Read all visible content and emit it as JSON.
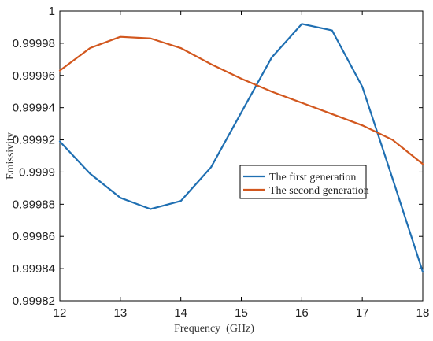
{
  "chart_data": {
    "type": "line",
    "title": "",
    "xlabel": "Frequency  (GHz)",
    "ylabel": "Emissivity",
    "xlim": [
      12,
      18
    ],
    "ylim": [
      0.99982,
      1.0
    ],
    "xticks": [
      12,
      13,
      14,
      15,
      16,
      17,
      18
    ],
    "xtick_labels": [
      "12",
      "13",
      "14",
      "15",
      "16",
      "17",
      "18"
    ],
    "yticks": [
      0.99982,
      0.99984,
      0.99986,
      0.99988,
      0.9999,
      0.99992,
      0.99994,
      0.99996,
      0.99998,
      1.0
    ],
    "ytick_labels": [
      "0.99982",
      "0.99984",
      "0.99986",
      "0.99988",
      "0.9999",
      "0.99992",
      "0.99994",
      "0.99996",
      "0.99998",
      "1"
    ],
    "grid": false,
    "legend_position": "center-right",
    "x": [
      12,
      12.5,
      13,
      13.5,
      14,
      14.5,
      15,
      15.5,
      16,
      16.5,
      17,
      17.5,
      18
    ],
    "series": [
      {
        "name": "The first generation",
        "color": "#1f6fb2",
        "values": [
          0.999919,
          0.999899,
          0.999884,
          0.999877,
          0.999882,
          0.999903,
          0.999937,
          0.999971,
          0.999992,
          0.999988,
          0.999953,
          0.999896,
          0.999838
        ]
      },
      {
        "name": "The second generation",
        "color": "#d2571e",
        "values": [
          0.999963,
          0.999977,
          0.999984,
          0.999983,
          0.999977,
          0.999967,
          0.999958,
          0.99995,
          0.999943,
          0.999936,
          0.999929,
          0.99992,
          0.999905
        ]
      }
    ]
  }
}
